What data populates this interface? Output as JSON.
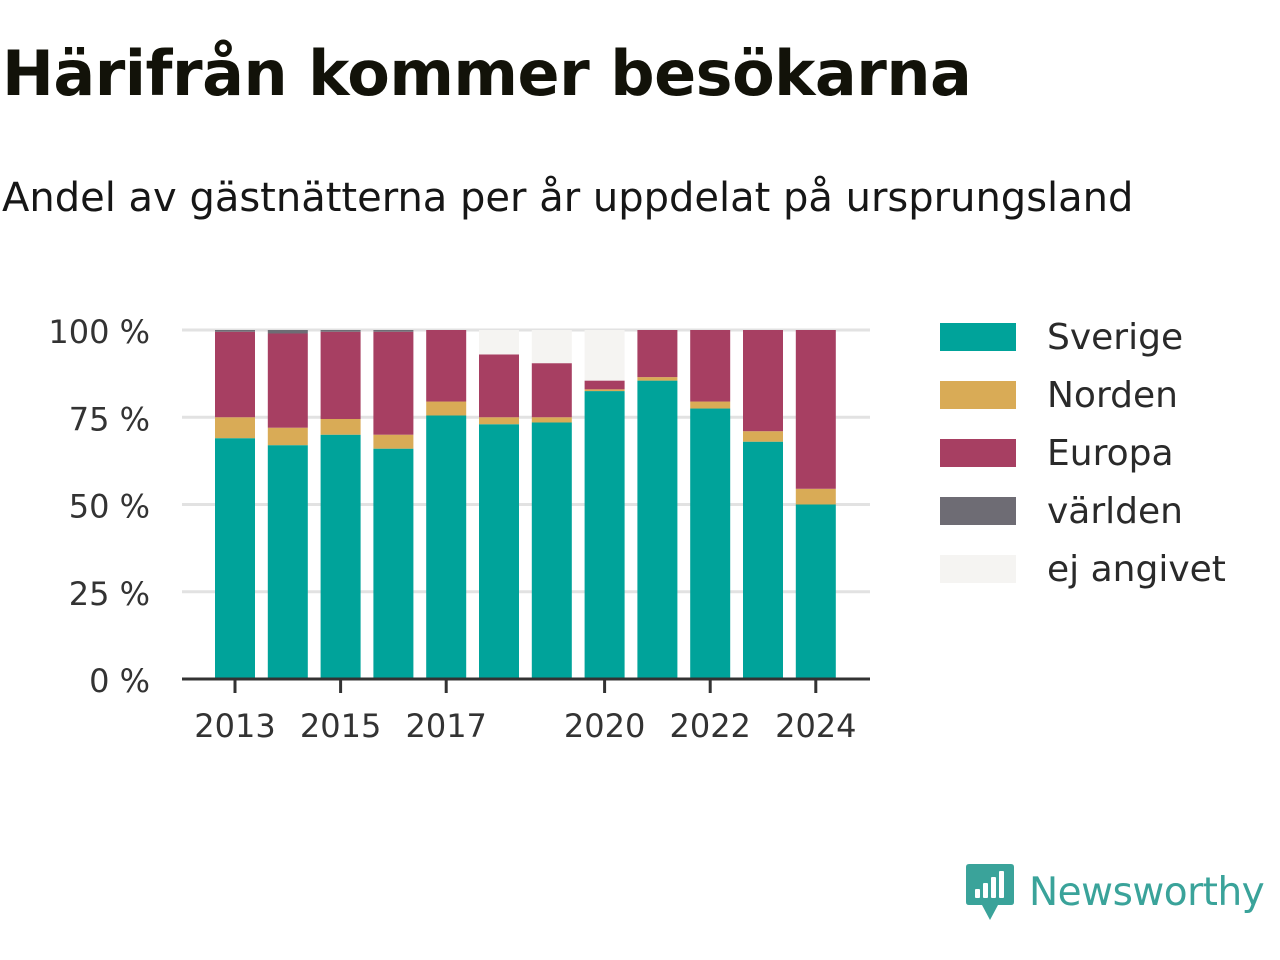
{
  "header": {
    "title": "Härifrån kommer besökarna",
    "subtitle": "Andel av gästnätterna per år uppdelat på ursprungsland"
  },
  "chart_data": {
    "type": "bar",
    "stacked": true,
    "categories": [
      "2013",
      "2014",
      "2015",
      "2016",
      "2017",
      "2018",
      "2019",
      "2020",
      "2021",
      "2022",
      "2023",
      "2024"
    ],
    "x_tick_labels": [
      "2013",
      "",
      "2015",
      "",
      "2017",
      "",
      "",
      "2020",
      "",
      "2022",
      "",
      "2024"
    ],
    "ylim": [
      0,
      100
    ],
    "y_ticks": [
      0,
      25,
      50,
      75,
      100
    ],
    "y_tick_labels": [
      "0 %",
      "25 %",
      "50 %",
      "75 %",
      "100 %"
    ],
    "grid": true,
    "legend": "right",
    "series": [
      {
        "name": "Sverige",
        "color": "#00a39a",
        "values": [
          69,
          67,
          70,
          66,
          75.5,
          73,
          73.5,
          82.5,
          85.5,
          77.5,
          68,
          50
        ]
      },
      {
        "name": "Norden",
        "color": "#d9ab56",
        "values": [
          6,
          5,
          4.5,
          4,
          4,
          2,
          1.5,
          0.5,
          1,
          2,
          3,
          4.5
        ]
      },
      {
        "name": "Europa",
        "color": "#a73f62",
        "values": [
          24.5,
          27,
          25,
          29.5,
          20.5,
          18,
          15.5,
          2.5,
          13.5,
          20.5,
          29,
          45.5
        ]
      },
      {
        "name": "världen",
        "color": "#6e6c74",
        "values": [
          0.5,
          1,
          0.5,
          0.5,
          0,
          0,
          0,
          0,
          0,
          0,
          0,
          0
        ]
      },
      {
        "name": "ej angivet",
        "color": "#f5f4f2",
        "values": [
          0,
          0,
          0,
          0,
          0,
          7,
          9.5,
          14.5,
          0,
          0,
          0,
          0
        ]
      }
    ]
  },
  "brand": {
    "name": "Newsworthy",
    "icon": "newsworthy-logo-icon",
    "color": "#3aa39a"
  }
}
